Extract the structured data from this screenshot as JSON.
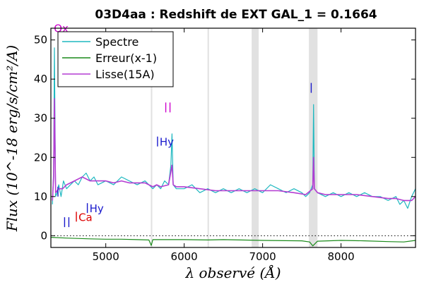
{
  "chart_data": {
    "type": "line",
    "title": "03D4aa : Redshift de EXT GAL_1 = 0.1664",
    "xlabel": "λ observé (Å)",
    "ylabel": "Flux (10^-18 erg/s/cm²/A)",
    "xlim": [
      4300,
      8950
    ],
    "ylim": [
      -3,
      53
    ],
    "x_ticks": [
      5000,
      6000,
      7000,
      8000
    ],
    "y_ticks": [
      0,
      10,
      20,
      30,
      40,
      50
    ],
    "grid": false,
    "legend_position": "top-left",
    "zero_line": true,
    "telluric_bands": [
      [
        5575,
        5582
      ],
      [
        6298,
        6305
      ],
      [
        6860,
        6950
      ],
      [
        7590,
        7700
      ]
    ],
    "series": [
      {
        "name": "Spectre",
        "color": "#1fb8c0",
        "x": [
          4320,
          4335,
          4345,
          4360,
          4380,
          4400,
          4430,
          4460,
          4500,
          4550,
          4600,
          4650,
          4700,
          4750,
          4800,
          4850,
          4900,
          5000,
          5100,
          5200,
          5300,
          5400,
          5500,
          5550,
          5600,
          5650,
          5700,
          5750,
          5800,
          5830,
          5845,
          5860,
          5900,
          6000,
          6100,
          6200,
          6300,
          6400,
          6500,
          6600,
          6700,
          6800,
          6900,
          7000,
          7100,
          7200,
          7300,
          7400,
          7500,
          7550,
          7600,
          7640,
          7650,
          7660,
          7700,
          7800,
          7900,
          8000,
          8100,
          8200,
          8300,
          8400,
          8500,
          8600,
          8700,
          8750,
          8800,
          8850,
          8900,
          8950
        ],
        "y": [
          8,
          17,
          48,
          10,
          11,
          13,
          10,
          14,
          12,
          13,
          14,
          13,
          15,
          16,
          14,
          15,
          13,
          14,
          13,
          15,
          14,
          13,
          14,
          13,
          12,
          13,
          12,
          14,
          13,
          18,
          26,
          13,
          12,
          12,
          13,
          11,
          12,
          11,
          12,
          11,
          12,
          11,
          12,
          11,
          13,
          12,
          11,
          12,
          11,
          10,
          11,
          13,
          33.5,
          12,
          11,
          10,
          11,
          10,
          11,
          10,
          11,
          10,
          10,
          9,
          10,
          8,
          9,
          7,
          10,
          12
        ]
      },
      {
        "name": "Erreur(x-1)",
        "color": "#1a8a1a",
        "x": [
          4300,
          4500,
          4800,
          5000,
          5200,
          5400,
          5550,
          5580,
          5600,
          5800,
          6000,
          6300,
          6500,
          7000,
          7500,
          7600,
          7640,
          7700,
          8000,
          8300,
          8600,
          8800,
          8950
        ],
        "y": [
          -0.4,
          -0.6,
          -0.8,
          -0.9,
          -0.9,
          -1.0,
          -1.1,
          -2.5,
          -1.0,
          -1.0,
          -1.0,
          -1.1,
          -1.0,
          -1.2,
          -1.3,
          -1.6,
          -2.6,
          -1.4,
          -1.2,
          -1.3,
          -1.5,
          -1.6,
          -1.2
        ]
      },
      {
        "name": "Lisse(15A)",
        "color": "#b43cd2",
        "x": [
          4320,
          4335,
          4345,
          4360,
          4400,
          4450,
          4500,
          4600,
          4700,
          4800,
          4900,
          5000,
          5100,
          5200,
          5300,
          5400,
          5500,
          5550,
          5600,
          5650,
          5700,
          5800,
          5845,
          5860,
          5900,
          6000,
          6200,
          6400,
          6600,
          6800,
          7000,
          7200,
          7400,
          7550,
          7640,
          7650,
          7660,
          7700,
          7800,
          8000,
          8200,
          8400,
          8600,
          8700,
          8800,
          8900,
          8950
        ],
        "y": [
          9,
          15,
          35,
          11,
          12,
          12,
          13,
          14,
          15,
          14,
          14,
          14,
          13.5,
          14,
          13.5,
          13.5,
          13.5,
          13,
          12.5,
          13,
          12.5,
          13,
          18,
          13,
          12.5,
          12.5,
          12,
          11.5,
          11.5,
          11.5,
          11.5,
          11.5,
          11,
          10.5,
          12,
          20,
          12,
          11,
          10.5,
          10.5,
          10.5,
          10,
          9.5,
          9.5,
          9,
          9,
          10
        ]
      }
    ],
    "line_markers": [
      {
        "label": "Ox",
        "x": 4338,
        "y": 51.8,
        "color": "#cc00cc",
        "ticks": 0
      },
      {
        "label": "",
        "x": 4390,
        "y": 10,
        "color": "#1a1acc",
        "ticks": 1
      },
      {
        "label": "",
        "x": 4475,
        "y": 2.2,
        "color": "#1a1acc",
        "ticks": 2
      },
      {
        "label": "Ca",
        "x": 4625,
        "y": 3.6,
        "color": "#dd0000",
        "ticks": 1
      },
      {
        "label": "Hy",
        "x": 4765,
        "y": 5.8,
        "color": "#1a1acc",
        "ticks": 1
      },
      {
        "label": "Hy",
        "x": 5660,
        "y": 22.8,
        "color": "#1a1acc",
        "ticks": 1
      },
      {
        "label": "",
        "x": 5765,
        "y": 31.5,
        "color": "#cc00cc",
        "ticks": 2
      },
      {
        "label": "",
        "x": 7620,
        "y": 36.5,
        "color": "#1a1acc",
        "ticks": 1
      }
    ]
  }
}
